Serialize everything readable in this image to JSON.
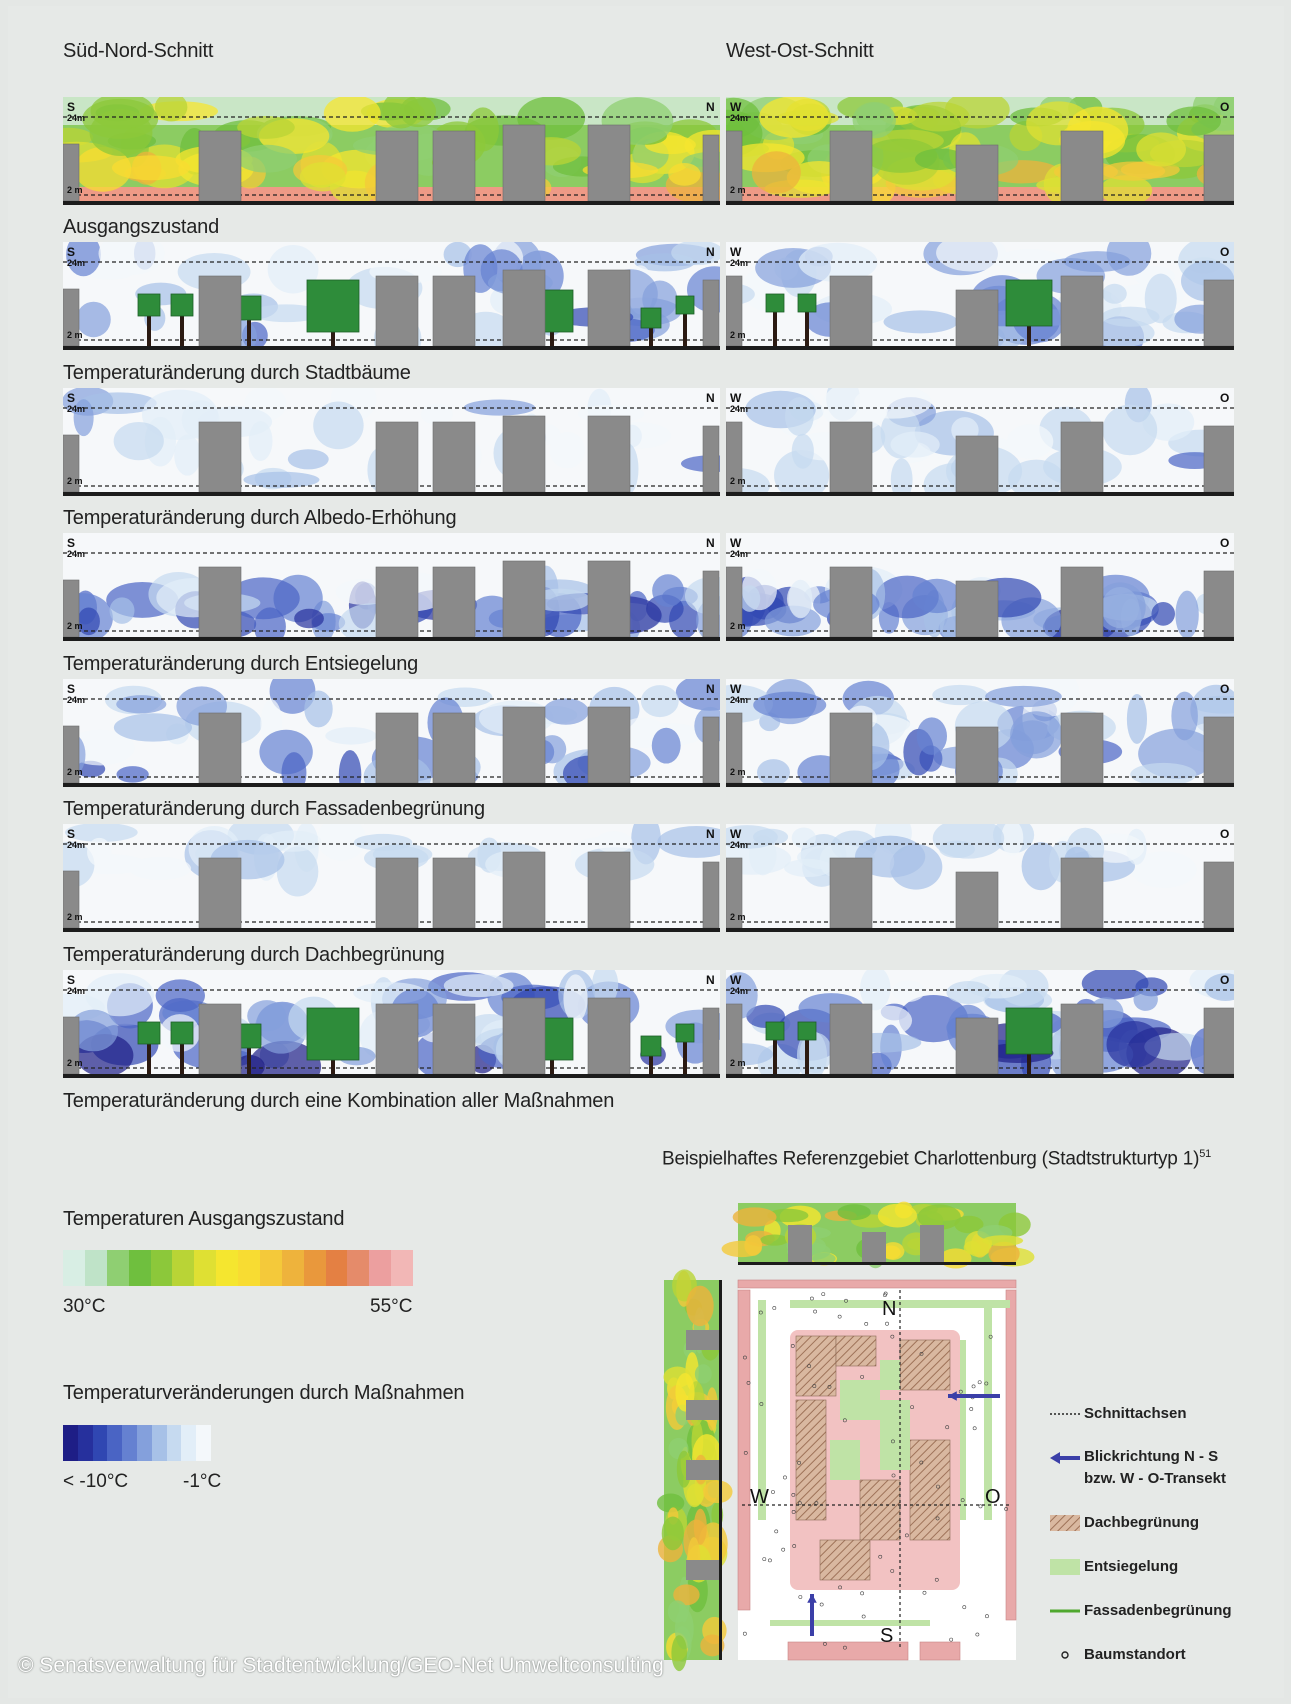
{
  "headers": {
    "sn": "Süd-Nord-Schnitt",
    "wo": "West-Ost-Schnitt"
  },
  "section_labels": {
    "s": "S",
    "n": "N",
    "w": "W",
    "o": "O",
    "h24": "24m",
    "h2": "2 m"
  },
  "captions": [
    "Ausgangszustand",
    "Temperaturänderung durch Stadtbäume",
    "Temperaturänderung durch Albedo-Erhöhung",
    "Temperaturänderung durch Entsiegelung",
    "Temperaturänderung durch Fassadenbegrünung",
    "Temperaturänderung durch Dachbegrünung",
    "Temperaturänderung durch eine Kombination aller Maßnahmen"
  ],
  "legend_initial": {
    "title": "Temperaturen Ausgangszustand",
    "min": "30°C",
    "max": "55°C",
    "colors": [
      "#d8eee4",
      "#bfe3c8",
      "#8fcf72",
      "#6fbf3e",
      "#8cc83a",
      "#b9d436",
      "#dfe033",
      "#f5e62f",
      "#f8dc32",
      "#f4c93a",
      "#eeb33c",
      "#e9983c",
      "#e48043",
      "#e58b6a",
      "#ec9f9f",
      "#f2b7b6"
    ]
  },
  "legend_change": {
    "title": "Temperaturveränderungen durch Maßnahmen",
    "min": "< -10°C",
    "max": "-1°C",
    "colors": [
      "#1e1e86",
      "#26309d",
      "#3047b2",
      "#4a64c4",
      "#6581d1",
      "#84a0dc",
      "#a7c1e7",
      "#c6daf0",
      "#e2eef8",
      "#f4f8fb"
    ]
  },
  "map": {
    "title": "Beispielhaftes Referenzgebiet Charlottenburg (Stadtstrukturtyp 1)",
    "footnote": "51",
    "compass": {
      "n": "N",
      "s": "S",
      "w": "W",
      "o": "O"
    },
    "key": {
      "axes": "Schnittachsen",
      "view_line1": "Blickrichtung N - S",
      "view_line2": "bzw. W - O-Transekt",
      "roof": "Dachbegrünung",
      "unseal": "Entsiegelung",
      "facade": "Fassadenbegrünung",
      "tree": "Baumstandort"
    }
  },
  "copyright": "© Senatsverwaltung für Stadtentwicklung/GEO-Net Umweltconsulting"
}
